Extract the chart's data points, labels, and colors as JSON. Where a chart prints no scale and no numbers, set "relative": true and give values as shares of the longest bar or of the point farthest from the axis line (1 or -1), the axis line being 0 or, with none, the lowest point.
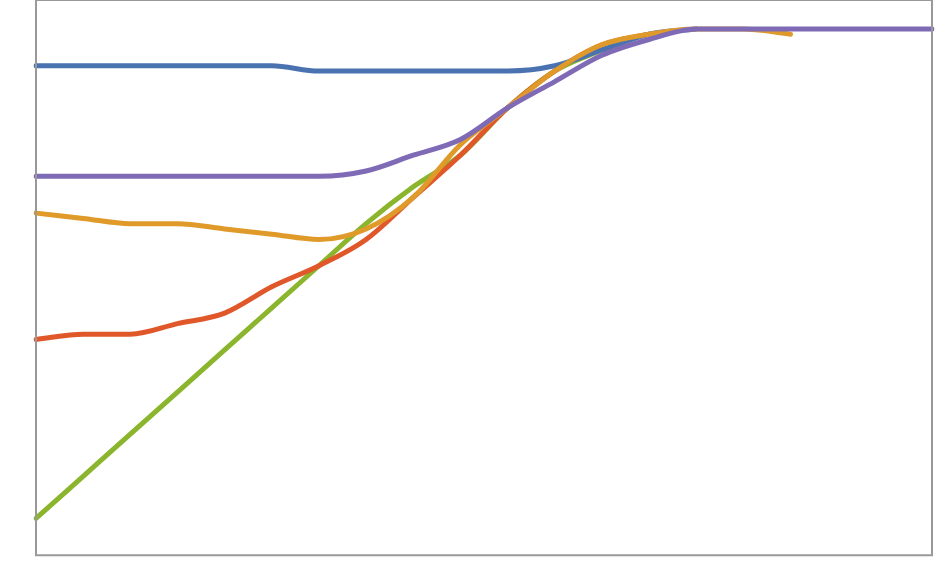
{
  "chart_data": {
    "type": "line",
    "relative": true,
    "grid": false,
    "legend": false,
    "marker": "none",
    "line_style": "solid",
    "categories": [
      null,
      null,
      null,
      null,
      null,
      null,
      null,
      null,
      null,
      null,
      null,
      null,
      null,
      null,
      null,
      null,
      null,
      null,
      null,
      null
    ],
    "series": [
      {
        "color": "#7f6bb5",
        "values": [
          0.72,
          0.72,
          0.72,
          0.72,
          0.72,
          0.72,
          0.72,
          0.73,
          0.76,
          0.79,
          0.85,
          0.9,
          0.95,
          0.98,
          1,
          1,
          1,
          1,
          1,
          1
        ]
      },
      {
        "color": "#e09a2a",
        "values": [
          0.65,
          0.64,
          0.63,
          0.63,
          0.62,
          0.61,
          0.6,
          0.62,
          0.68,
          0.78,
          0.85,
          0.92,
          0.97,
          0.99,
          1,
          1,
          0.99,
          null,
          null,
          null
        ]
      },
      {
        "color": "#4a72b0",
        "values": [
          0.93,
          0.93,
          0.93,
          0.93,
          0.93,
          0.93,
          0.92,
          0.92,
          0.92,
          0.92,
          0.92,
          0.93,
          0.96,
          0.99,
          1,
          null,
          null,
          null,
          null,
          null
        ]
      },
      {
        "color": "#e0582a",
        "values": [
          0.41,
          0.42,
          0.42,
          0.44,
          0.46,
          0.51,
          0.55,
          0.6,
          0.68,
          0.76,
          0.85,
          0.92,
          0.97,
          0.99,
          null,
          null,
          null,
          null,
          null,
          null
        ]
      },
      {
        "color": "#8ab52c",
        "values": [
          0.07,
          0.15,
          0.23,
          0.31,
          0.39,
          0.47,
          0.55,
          0.63,
          0.7,
          0.76,
          0.85,
          0.92,
          0.96,
          null,
          null,
          null,
          null,
          null,
          null,
          null
        ]
      }
    ]
  }
}
